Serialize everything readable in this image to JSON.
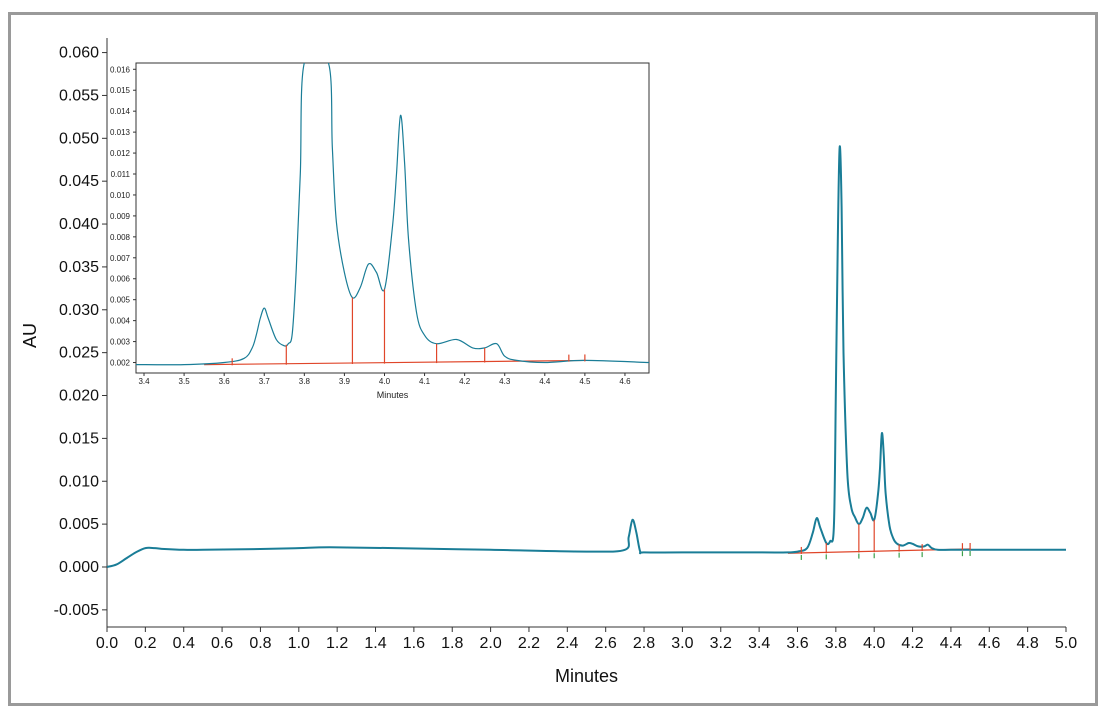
{
  "chart_data": [
    {
      "type": "line",
      "id": "main",
      "xlabel": "Minutes",
      "ylabel": "AU",
      "xlim": [
        0.0,
        5.0
      ],
      "ylim": [
        -0.007,
        0.061
      ],
      "xticks": [
        "0.0",
        "0.2",
        "0.4",
        "0.6",
        "0.8",
        "1.0",
        "1.2",
        "1.4",
        "1.6",
        "1.8",
        "2.0",
        "2.2",
        "2.4",
        "2.6",
        "2.8",
        "3.0",
        "3.2",
        "3.4",
        "3.6",
        "3.8",
        "4.0",
        "4.2",
        "4.4",
        "4.6",
        "4.8",
        "5.0"
      ],
      "yticks": [
        "-0.005",
        "0.000",
        "0.005",
        "0.010",
        "0.015",
        "0.020",
        "0.025",
        "0.030",
        "0.035",
        "0.040",
        "0.045",
        "0.050",
        "0.055",
        "0.060"
      ],
      "series": [
        {
          "color": "#1a7d97",
          "x": [
            0.0,
            0.05,
            0.1,
            0.15,
            0.2,
            0.25,
            0.3,
            0.4,
            0.5,
            0.8,
            1.0,
            1.16,
            1.5,
            2.0,
            2.5,
            2.7,
            2.72,
            2.74,
            2.76,
            2.78,
            2.8,
            3.0,
            3.4,
            3.55,
            3.6,
            3.65,
            3.68,
            3.7,
            3.72,
            3.75,
            3.77,
            3.79,
            3.8,
            3.81,
            3.82,
            3.83,
            3.84,
            3.86,
            3.88,
            3.9,
            3.92,
            3.94,
            3.96,
            3.98,
            4.0,
            4.02,
            4.03,
            4.04,
            4.05,
            4.06,
            4.08,
            4.1,
            4.12,
            4.15,
            4.18,
            4.2,
            4.23,
            4.26,
            4.28,
            4.3,
            4.33,
            4.4,
            4.5,
            4.7,
            5.0
          ],
          "y": [
            0.0,
            0.0003,
            0.001,
            0.0017,
            0.0022,
            0.0022,
            0.0021,
            0.002,
            0.002,
            0.0021,
            0.0022,
            0.0023,
            0.0022,
            0.002,
            0.0018,
            0.002,
            0.0035,
            0.0055,
            0.004,
            0.0018,
            0.0017,
            0.0017,
            0.0017,
            0.0017,
            0.0018,
            0.0022,
            0.004,
            0.0057,
            0.0045,
            0.0028,
            0.003,
            0.0048,
            0.02,
            0.038,
            0.049,
            0.042,
            0.025,
            0.011,
            0.007,
            0.0058,
            0.005,
            0.0057,
            0.0069,
            0.0063,
            0.0055,
            0.0085,
            0.0115,
            0.0156,
            0.013,
            0.0085,
            0.0048,
            0.0033,
            0.0027,
            0.0025,
            0.0028,
            0.0027,
            0.0024,
            0.0024,
            0.0026,
            0.0022,
            0.002,
            0.002,
            0.002,
            0.002,
            0.002
          ]
        }
      ],
      "baseline": {
        "color": "#e0462a",
        "x": [
          3.55,
          4.5
        ],
        "y": [
          0.0016,
          0.0021
        ]
      },
      "drop_lines": [
        3.62,
        3.75,
        3.92,
        4.0,
        4.13,
        4.25,
        4.46,
        4.5
      ],
      "drop_line_color": "#e0462a",
      "tick_marker_color": "#3aa04a"
    },
    {
      "type": "line",
      "id": "inset",
      "xlabel": "Minutes",
      "ylabel": "",
      "xlim": [
        3.38,
        4.66
      ],
      "ylim": [
        0.0015,
        0.0163
      ],
      "xticks": [
        "3.4",
        "3.5",
        "3.6",
        "3.7",
        "3.8",
        "3.9",
        "4.0",
        "4.1",
        "4.2",
        "4.3",
        "4.4",
        "4.5",
        "4.6"
      ],
      "yticks": [
        "0.002",
        "0.003",
        "0.004",
        "0.005",
        "0.006",
        "0.007",
        "0.008",
        "0.009",
        "0.010",
        "0.011",
        "0.012",
        "0.013",
        "0.014",
        "0.015",
        "0.016"
      ],
      "series": [
        {
          "color": "#1a7d97",
          "x": [
            3.38,
            3.5,
            3.6,
            3.65,
            3.67,
            3.68,
            3.69,
            3.7,
            3.71,
            3.73,
            3.75,
            3.76,
            3.77,
            3.78,
            3.79,
            3.8,
            3.86,
            3.87,
            3.88,
            3.9,
            3.92,
            3.94,
            3.96,
            3.98,
            4.0,
            4.02,
            4.03,
            4.04,
            4.05,
            4.06,
            4.08,
            4.1,
            4.13,
            4.18,
            4.22,
            4.25,
            4.28,
            4.3,
            4.33,
            4.4,
            4.5,
            4.66
          ],
          "y": [
            0.0019,
            0.0019,
            0.002,
            0.0022,
            0.0027,
            0.0033,
            0.0041,
            0.0046,
            0.0041,
            0.0031,
            0.0028,
            0.0029,
            0.0034,
            0.0065,
            0.011,
            0.0163,
            0.0163,
            0.0122,
            0.0087,
            0.0063,
            0.0051,
            0.0056,
            0.0067,
            0.0063,
            0.0055,
            0.0085,
            0.011,
            0.0138,
            0.0116,
            0.0079,
            0.0044,
            0.0033,
            0.0029,
            0.0031,
            0.0027,
            0.0027,
            0.0029,
            0.0023,
            0.0021,
            0.002,
            0.0021,
            0.002
          ]
        }
      ],
      "baseline": {
        "color": "#e0462a",
        "x": [
          3.55,
          4.5
        ],
        "y": [
          0.0019,
          0.0021
        ]
      },
      "drop_lines": [
        3.62,
        3.755,
        3.92,
        4.0,
        4.13,
        4.25,
        4.46,
        4.5
      ],
      "drop_line_color": "#e0462a"
    }
  ]
}
